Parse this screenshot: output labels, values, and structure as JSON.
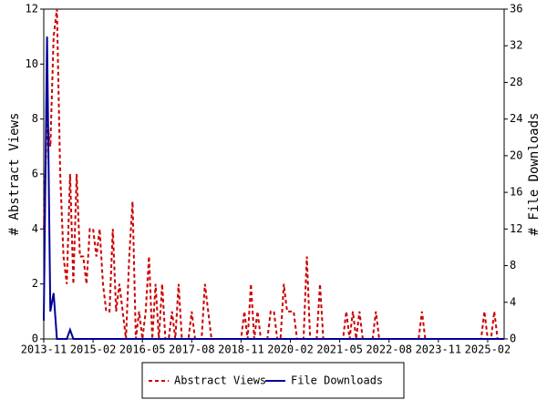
{
  "chart_data": {
    "type": "line",
    "ylabel": "# Abstract Views",
    "y2label": "# File Downloads",
    "x": [
      "2013-11",
      "2013-12",
      "2014-01",
      "2014-02",
      "2014-03",
      "2014-04",
      "2014-05",
      "2014-06",
      "2014-07",
      "2014-08",
      "2014-09",
      "2014-10",
      "2014-11",
      "2014-12",
      "2015-01",
      "2015-02",
      "2015-03",
      "2015-04",
      "2015-05",
      "2015-06",
      "2015-07",
      "2015-08",
      "2015-09",
      "2015-10",
      "2015-11",
      "2015-12",
      "2016-01",
      "2016-02",
      "2016-03",
      "2016-04",
      "2016-05",
      "2016-06",
      "2016-07",
      "2016-08",
      "2016-09",
      "2016-10",
      "2016-11",
      "2016-12",
      "2017-01",
      "2017-02",
      "2017-03",
      "2017-04",
      "2017-05",
      "2017-06",
      "2017-07",
      "2017-08",
      "2017-09",
      "2017-10",
      "2017-11",
      "2017-12",
      "2018-01",
      "2018-02",
      "2018-03",
      "2018-04",
      "2018-05",
      "2018-06",
      "2018-07",
      "2018-08",
      "2018-09",
      "2018-10",
      "2018-11",
      "2018-12",
      "2019-01",
      "2019-02",
      "2019-03",
      "2019-04",
      "2019-05",
      "2019-06",
      "2019-07",
      "2019-08",
      "2019-09",
      "2019-10",
      "2019-11",
      "2019-12",
      "2020-01",
      "2020-02",
      "2020-03",
      "2020-04",
      "2020-05",
      "2020-06",
      "2020-07",
      "2020-08",
      "2020-09",
      "2020-10",
      "2020-11",
      "2020-12",
      "2021-01",
      "2021-02",
      "2021-03",
      "2021-04",
      "2021-05",
      "2021-06",
      "2021-07",
      "2021-08",
      "2021-09",
      "2021-10",
      "2021-11",
      "2021-12",
      "2022-01",
      "2022-02",
      "2022-03",
      "2022-04",
      "2022-05",
      "2022-06",
      "2022-07",
      "2022-08",
      "2022-09",
      "2022-10",
      "2022-11",
      "2022-12",
      "2023-01",
      "2023-02",
      "2023-03",
      "2023-04",
      "2023-05",
      "2023-06",
      "2023-07",
      "2023-08",
      "2023-09",
      "2023-10",
      "2023-11",
      "2023-12",
      "2024-01",
      "2024-02",
      "2024-03",
      "2024-04",
      "2024-05",
      "2024-06",
      "2024-07",
      "2024-08",
      "2024-09",
      "2024-10",
      "2024-11",
      "2024-12",
      "2025-01",
      "2025-02",
      "2025-03",
      "2025-04",
      "2025-05",
      "2025-06",
      "2025-07"
    ],
    "xlim": [
      "2013-11",
      "2025-07"
    ],
    "xticks": [
      "2013-11",
      "2015-02",
      "2016-05",
      "2017-08",
      "2018-11",
      "2020-02",
      "2021-05",
      "2022-08",
      "2023-11",
      "2025-02"
    ],
    "ylim": [
      0,
      12
    ],
    "yticks": [
      0,
      2,
      4,
      6,
      8,
      10,
      12
    ],
    "y2lim": [
      0,
      36
    ],
    "y2ticks": [
      0,
      4,
      8,
      12,
      16,
      20,
      24,
      28,
      32,
      36
    ],
    "series": [
      {
        "name": "Abstract Views",
        "color": "#cc0000",
        "dashed": true,
        "values": [
          4,
          8,
          7,
          11,
          12,
          6,
          3,
          2,
          6,
          2,
          6,
          3,
          3,
          2,
          4,
          4,
          3,
          4,
          2,
          1,
          1,
          4,
          1,
          2,
          1,
          0,
          3,
          5,
          0,
          1,
          0,
          1,
          3,
          0,
          2,
          0,
          2,
          0,
          0,
          1,
          0,
          2,
          0,
          0,
          0,
          1,
          0,
          0,
          0,
          2,
          1,
          0,
          0,
          0,
          0,
          0,
          0,
          0,
          0,
          0,
          0,
          1,
          0,
          2,
          0,
          1,
          0,
          0,
          0,
          1,
          1,
          0,
          0,
          2,
          1,
          1,
          1,
          0,
          0,
          0,
          3,
          0,
          0,
          0,
          2,
          0,
          0,
          0,
          0,
          0,
          0,
          0,
          1,
          0,
          1,
          0,
          1,
          0,
          0,
          0,
          0,
          1,
          0,
          0,
          0,
          0,
          0,
          0,
          0,
          0,
          0,
          0,
          0,
          0,
          0,
          1,
          0,
          0,
          0,
          0,
          0,
          0,
          0,
          0,
          0,
          0,
          0,
          0,
          0,
          0,
          0,
          0,
          0,
          0,
          1,
          0,
          0,
          1,
          0,
          0,
          0
        ]
      },
      {
        "name": "File Downloads",
        "color": "#000099",
        "dashed": false,
        "axis": "y2",
        "values": [
          2,
          33,
          3,
          5,
          0,
          0,
          0,
          0,
          1,
          0,
          0,
          0,
          0,
          0,
          0,
          0,
          0,
          0,
          0,
          0,
          0,
          0,
          0,
          0,
          0,
          0,
          0,
          0,
          0,
          0,
          0,
          0,
          0,
          0,
          0,
          0,
          0,
          0,
          0,
          0,
          0,
          0,
          0,
          0,
          0,
          0,
          0,
          0,
          0,
          0,
          0,
          0,
          0,
          0,
          0,
          0,
          0,
          0,
          0,
          0,
          0,
          0,
          0,
          0,
          0,
          0,
          0,
          0,
          0,
          0,
          0,
          0,
          0,
          0,
          0,
          0,
          0,
          0,
          0,
          0,
          0,
          0,
          0,
          0,
          0,
          0,
          0,
          0,
          0,
          0,
          0,
          0,
          0,
          0,
          0,
          0,
          0,
          0,
          0,
          0,
          0,
          0,
          0,
          0,
          0,
          0,
          0,
          0,
          0,
          0,
          0,
          0,
          0,
          0,
          0,
          0,
          0,
          0,
          0,
          0,
          0,
          0,
          0,
          0,
          0,
          0,
          0,
          0,
          0,
          0,
          0,
          0,
          0,
          0,
          0,
          0,
          0,
          0,
          0,
          0,
          0
        ]
      }
    ]
  }
}
